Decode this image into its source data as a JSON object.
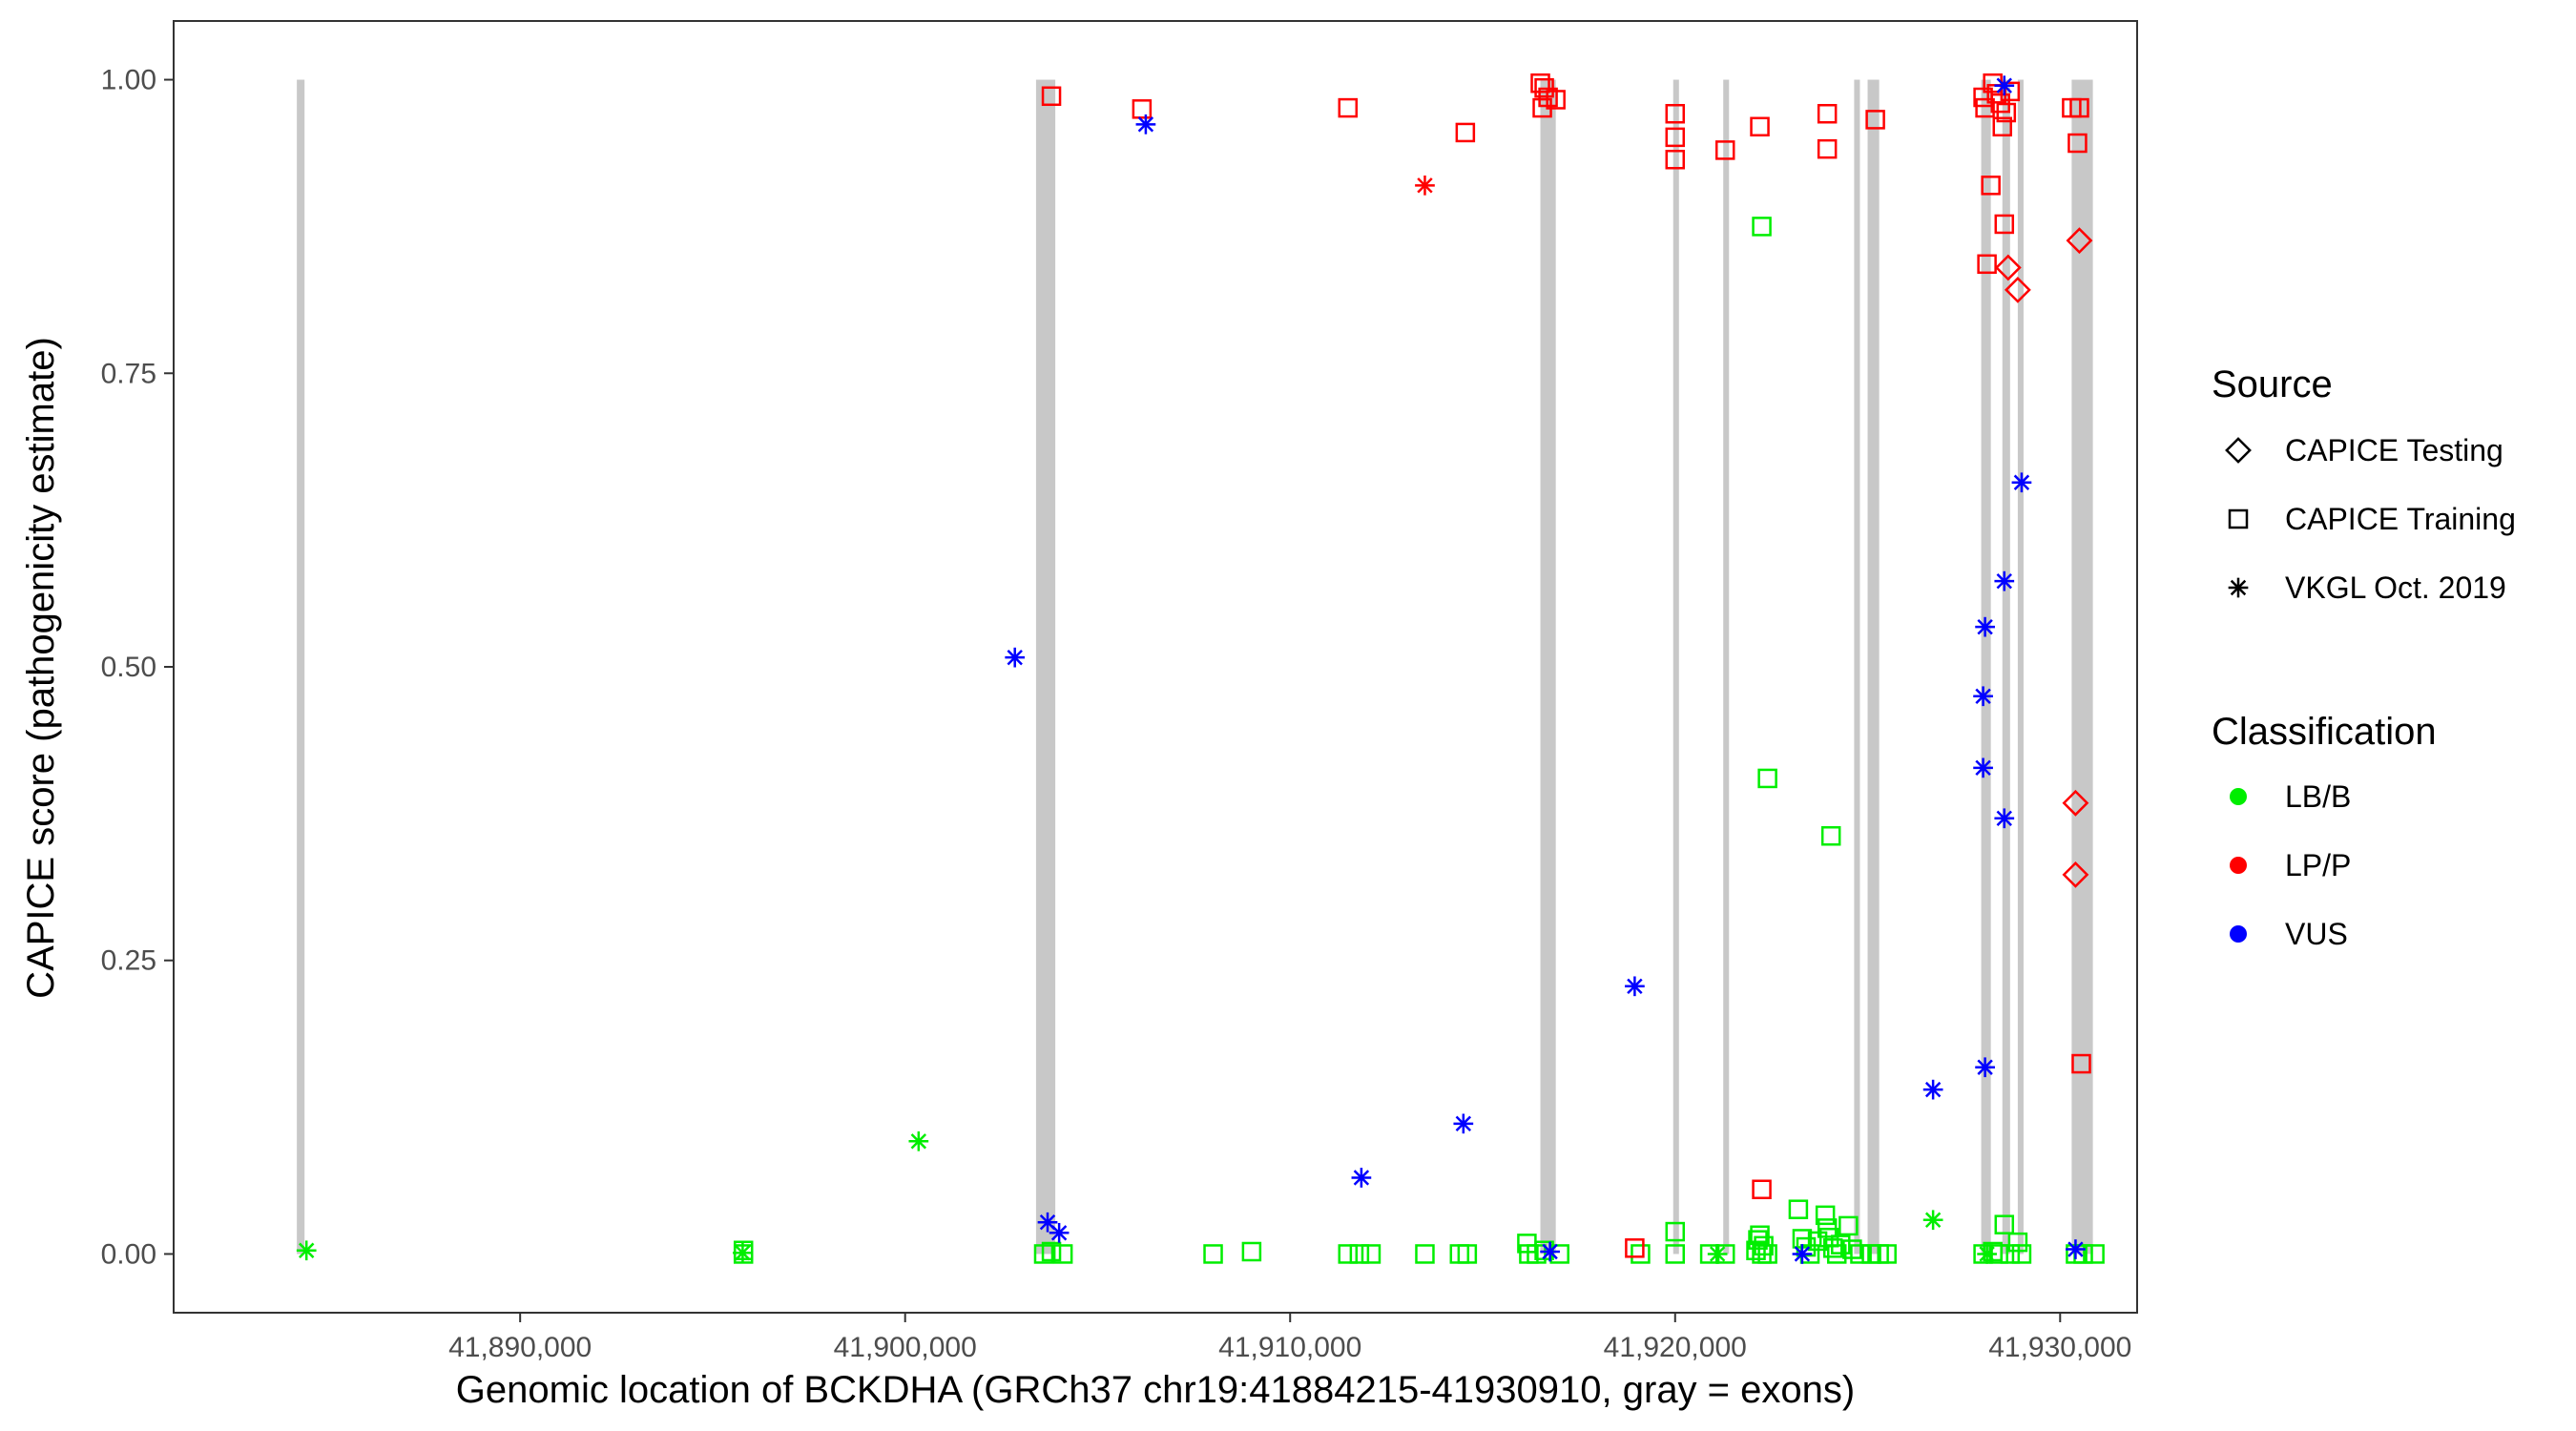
{
  "chart_data": {
    "type": "scatter",
    "title": "",
    "xlabel": "Genomic location of BCKDHA (GRCh37 chr19:41884215-41930910, gray = exons)",
    "ylabel": "CAPICE score (pathogenicity estimate)",
    "xlim": [
      41881000,
      41932000
    ],
    "ylim": [
      -0.05,
      1.05
    ],
    "x_ticks": [
      41890000,
      41900000,
      41910000,
      41920000,
      41930000
    ],
    "x_tick_labels": [
      "41,890,000",
      "41,900,000",
      "41,910,000",
      "41,920,000",
      "41,930,000"
    ],
    "y_ticks": [
      0,
      0.25,
      0.5,
      0.75,
      1
    ],
    "y_tick_labels": [
      "0.00",
      "0.25",
      "0.50",
      "0.75",
      "1.00"
    ],
    "grid": false,
    "exons": [
      [
        41884200,
        41884400
      ],
      [
        41903400,
        41903900
      ],
      [
        41916500,
        41916900
      ],
      [
        41919950,
        41920100
      ],
      [
        41921250,
        41921400
      ],
      [
        41924650,
        41924800
      ],
      [
        41925000,
        41925300
      ],
      [
        41927950,
        41928200
      ],
      [
        41928500,
        41928700
      ],
      [
        41928900,
        41929050
      ],
      [
        41930300,
        41930850
      ]
    ],
    "exon_color": "#c8c8c8",
    "shape_legend": {
      "title": "Source",
      "items": [
        {
          "label": "CAPICE Testing",
          "shape": "diamond"
        },
        {
          "label": "CAPICE Training",
          "shape": "square"
        },
        {
          "label": "VKGL Oct. 2019",
          "shape": "asterisk"
        }
      ]
    },
    "color_legend": {
      "title": "Classification",
      "items": [
        {
          "label": "LB/B",
          "color": "#00ee00"
        },
        {
          "label": "LP/P",
          "color": "#ff0000"
        },
        {
          "label": "VUS",
          "color": "#0000ff"
        }
      ]
    },
    "series": [
      {
        "name": "LB/B",
        "color": "#00ee00",
        "points": [
          {
            "x": 41884450,
            "y": 0.003,
            "shape": "asterisk"
          },
          {
            "x": 41895780,
            "y": 0.001,
            "shape": "asterisk"
          },
          {
            "x": 41895800,
            "y": 0.003,
            "shape": "square"
          },
          {
            "x": 41895800,
            "y": 0.0,
            "shape": "square"
          },
          {
            "x": 41900350,
            "y": 0.096,
            "shape": "asterisk"
          },
          {
            "x": 41903600,
            "y": 0.0,
            "shape": "square"
          },
          {
            "x": 41903800,
            "y": 0.002,
            "shape": "square"
          },
          {
            "x": 41904100,
            "y": 0.0,
            "shape": "square"
          },
          {
            "x": 41908000,
            "y": 0.0,
            "shape": "square"
          },
          {
            "x": 41909000,
            "y": 0.002,
            "shape": "square"
          },
          {
            "x": 41911500,
            "y": 0.0,
            "shape": "square"
          },
          {
            "x": 41911800,
            "y": 0.0,
            "shape": "square"
          },
          {
            "x": 41912100,
            "y": 0.0,
            "shape": "square"
          },
          {
            "x": 41913500,
            "y": 0.0,
            "shape": "square"
          },
          {
            "x": 41914400,
            "y": 0.0,
            "shape": "square"
          },
          {
            "x": 41914600,
            "y": 0.0,
            "shape": "square"
          },
          {
            "x": 41916150,
            "y": 0.009,
            "shape": "square"
          },
          {
            "x": 41916200,
            "y": 0.0,
            "shape": "square"
          },
          {
            "x": 41916400,
            "y": 0.0,
            "shape": "square"
          },
          {
            "x": 41916600,
            "y": 0.003,
            "shape": "square"
          },
          {
            "x": 41917000,
            "y": 0.0,
            "shape": "square"
          },
          {
            "x": 41919100,
            "y": 0.0,
            "shape": "square"
          },
          {
            "x": 41920000,
            "y": 0.019,
            "shape": "square"
          },
          {
            "x": 41920000,
            "y": 0.0,
            "shape": "square"
          },
          {
            "x": 41920900,
            "y": 0.0,
            "shape": "square"
          },
          {
            "x": 41921100,
            "y": 0.0,
            "shape": "asterisk"
          },
          {
            "x": 41921300,
            "y": 0.0,
            "shape": "square"
          },
          {
            "x": 41922250,
            "y": 0.875,
            "shape": "square"
          },
          {
            "x": 41922400,
            "y": 0.405,
            "shape": "square"
          },
          {
            "x": 41922150,
            "y": 0.012,
            "shape": "square"
          },
          {
            "x": 41922200,
            "y": 0.016,
            "shape": "square"
          },
          {
            "x": 41922300,
            "y": 0.007,
            "shape": "square"
          },
          {
            "x": 41922100,
            "y": 0.003,
            "shape": "square"
          },
          {
            "x": 41922250,
            "y": 0.0,
            "shape": "square"
          },
          {
            "x": 41922400,
            "y": 0.0,
            "shape": "square"
          },
          {
            "x": 41923200,
            "y": 0.038,
            "shape": "square"
          },
          {
            "x": 41923300,
            "y": 0.013,
            "shape": "square"
          },
          {
            "x": 41923400,
            "y": 0.006,
            "shape": "square"
          },
          {
            "x": 41923500,
            "y": 0.0,
            "shape": "square"
          },
          {
            "x": 41923700,
            "y": 0.011,
            "shape": "square"
          },
          {
            "x": 41923900,
            "y": 0.033,
            "shape": "square"
          },
          {
            "x": 41923950,
            "y": 0.022,
            "shape": "square"
          },
          {
            "x": 41924000,
            "y": 0.014,
            "shape": "square"
          },
          {
            "x": 41924050,
            "y": 0.356,
            "shape": "square"
          },
          {
            "x": 41924100,
            "y": 0.005,
            "shape": "square"
          },
          {
            "x": 41924200,
            "y": 0.0,
            "shape": "square"
          },
          {
            "x": 41924300,
            "y": 0.008,
            "shape": "square"
          },
          {
            "x": 41924500,
            "y": 0.024,
            "shape": "square"
          },
          {
            "x": 41924600,
            "y": 0.004,
            "shape": "square"
          },
          {
            "x": 41924800,
            "y": 0.0,
            "shape": "square"
          },
          {
            "x": 41925100,
            "y": 0.0,
            "shape": "square"
          },
          {
            "x": 41925300,
            "y": 0.0,
            "shape": "square"
          },
          {
            "x": 41925500,
            "y": 0.0,
            "shape": "square"
          },
          {
            "x": 41926700,
            "y": 0.029,
            "shape": "asterisk"
          },
          {
            "x": 41928000,
            "y": 0.0,
            "shape": "square"
          },
          {
            "x": 41928100,
            "y": 0.0,
            "shape": "asterisk"
          },
          {
            "x": 41928250,
            "y": 0.002,
            "shape": "square"
          },
          {
            "x": 41928400,
            "y": 0.0,
            "shape": "square"
          },
          {
            "x": 41928550,
            "y": 0.025,
            "shape": "square"
          },
          {
            "x": 41928700,
            "y": 0.0,
            "shape": "square"
          },
          {
            "x": 41928900,
            "y": 0.01,
            "shape": "square"
          },
          {
            "x": 41929000,
            "y": 0.0,
            "shape": "square"
          },
          {
            "x": 41930400,
            "y": 0.0,
            "shape": "square"
          },
          {
            "x": 41930600,
            "y": 0.0,
            "shape": "square"
          },
          {
            "x": 41930900,
            "y": 0.0,
            "shape": "square"
          }
        ]
      },
      {
        "name": "LP/P",
        "color": "#ff0000",
        "points": [
          {
            "x": 41903800,
            "y": 0.986,
            "shape": "square"
          },
          {
            "x": 41906150,
            "y": 0.975,
            "shape": "square"
          },
          {
            "x": 41911500,
            "y": 0.976,
            "shape": "square"
          },
          {
            "x": 41913500,
            "y": 0.91,
            "shape": "asterisk"
          },
          {
            "x": 41914550,
            "y": 0.955,
            "shape": "square"
          },
          {
            "x": 41916500,
            "y": 0.997,
            "shape": "square"
          },
          {
            "x": 41916600,
            "y": 0.993,
            "shape": "square"
          },
          {
            "x": 41916550,
            "y": 0.976,
            "shape": "square"
          },
          {
            "x": 41916700,
            "y": 0.985,
            "shape": "square"
          },
          {
            "x": 41916900,
            "y": 0.983,
            "shape": "square"
          },
          {
            "x": 41918950,
            "y": 0.005,
            "shape": "square"
          },
          {
            "x": 41920000,
            "y": 0.971,
            "shape": "square"
          },
          {
            "x": 41920000,
            "y": 0.951,
            "shape": "square"
          },
          {
            "x": 41920000,
            "y": 0.932,
            "shape": "square"
          },
          {
            "x": 41921300,
            "y": 0.94,
            "shape": "square"
          },
          {
            "x": 41922200,
            "y": 0.96,
            "shape": "square"
          },
          {
            "x": 41922250,
            "y": 0.055,
            "shape": "square"
          },
          {
            "x": 41923950,
            "y": 0.971,
            "shape": "square"
          },
          {
            "x": 41923950,
            "y": 0.941,
            "shape": "square"
          },
          {
            "x": 41925200,
            "y": 0.966,
            "shape": "square"
          },
          {
            "x": 41928000,
            "y": 0.985,
            "shape": "square"
          },
          {
            "x": 41928050,
            "y": 0.976,
            "shape": "square"
          },
          {
            "x": 41928100,
            "y": 0.843,
            "shape": "square"
          },
          {
            "x": 41928200,
            "y": 0.91,
            "shape": "square"
          },
          {
            "x": 41928250,
            "y": 0.997,
            "shape": "square"
          },
          {
            "x": 41928350,
            "y": 0.988,
            "shape": "square"
          },
          {
            "x": 41928450,
            "y": 0.98,
            "shape": "square"
          },
          {
            "x": 41928500,
            "y": 0.96,
            "shape": "square"
          },
          {
            "x": 41928550,
            "y": 0.877,
            "shape": "square"
          },
          {
            "x": 41928600,
            "y": 0.972,
            "shape": "square"
          },
          {
            "x": 41928650,
            "y": 0.84,
            "shape": "diamond"
          },
          {
            "x": 41928700,
            "y": 0.99,
            "shape": "square"
          },
          {
            "x": 41928900,
            "y": 0.821,
            "shape": "diamond"
          },
          {
            "x": 41930300,
            "y": 0.976,
            "shape": "square"
          },
          {
            "x": 41930500,
            "y": 0.976,
            "shape": "square"
          },
          {
            "x": 41930450,
            "y": 0.946,
            "shape": "square"
          },
          {
            "x": 41930500,
            "y": 0.863,
            "shape": "diamond"
          },
          {
            "x": 41930400,
            "y": 0.384,
            "shape": "diamond"
          },
          {
            "x": 41930400,
            "y": 0.323,
            "shape": "diamond"
          },
          {
            "x": 41930550,
            "y": 0.162,
            "shape": "square"
          }
        ]
      },
      {
        "name": "VUS",
        "color": "#0000ff",
        "points": [
          {
            "x": 41902850,
            "y": 0.508,
            "shape": "asterisk"
          },
          {
            "x": 41903700,
            "y": 0.027,
            "shape": "asterisk"
          },
          {
            "x": 41904000,
            "y": 0.018,
            "shape": "asterisk"
          },
          {
            "x": 41906250,
            "y": 0.962,
            "shape": "asterisk"
          },
          {
            "x": 41911850,
            "y": 0.065,
            "shape": "asterisk"
          },
          {
            "x": 41914500,
            "y": 0.111,
            "shape": "asterisk"
          },
          {
            "x": 41916750,
            "y": 0.002,
            "shape": "asterisk"
          },
          {
            "x": 41918950,
            "y": 0.228,
            "shape": "asterisk"
          },
          {
            "x": 41923300,
            "y": 0.0,
            "shape": "asterisk"
          },
          {
            "x": 41926700,
            "y": 0.14,
            "shape": "asterisk"
          },
          {
            "x": 41928000,
            "y": 0.475,
            "shape": "asterisk"
          },
          {
            "x": 41928000,
            "y": 0.414,
            "shape": "asterisk"
          },
          {
            "x": 41928050,
            "y": 0.534,
            "shape": "asterisk"
          },
          {
            "x": 41928050,
            "y": 0.159,
            "shape": "asterisk"
          },
          {
            "x": 41928550,
            "y": 0.573,
            "shape": "asterisk"
          },
          {
            "x": 41928550,
            "y": 0.371,
            "shape": "asterisk"
          },
          {
            "x": 41928550,
            "y": 0.995,
            "shape": "asterisk"
          },
          {
            "x": 41929000,
            "y": 0.657,
            "shape": "asterisk"
          },
          {
            "x": 41930400,
            "y": 0.004,
            "shape": "asterisk"
          }
        ]
      }
    ]
  }
}
